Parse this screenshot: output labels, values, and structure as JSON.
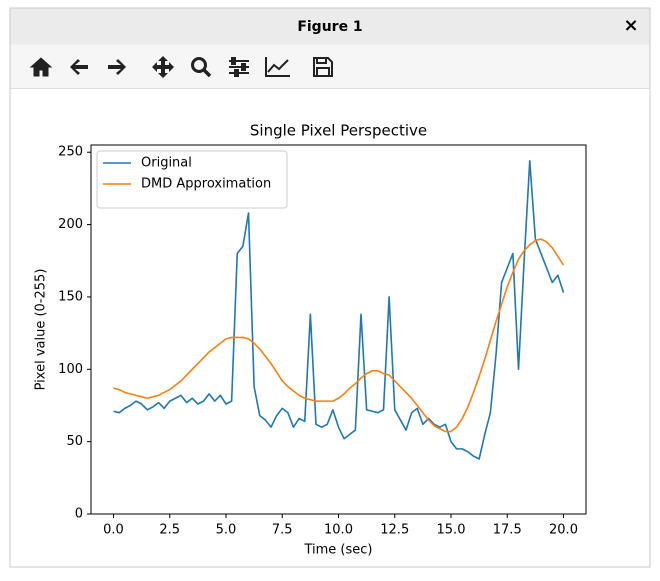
{
  "window": {
    "title": "Figure 1",
    "close": "×"
  },
  "chart_data": {
    "type": "line",
    "title": "Single Pixel Perspective",
    "x_label": "Time (sec)",
    "y_label": "Pixel value (0-255)",
    "xlim": [
      -1,
      21
    ],
    "ylim": [
      0,
      255
    ],
    "xticks": [
      {
        "value": 0,
        "label": "0.0"
      },
      {
        "value": 2.5,
        "label": "2.5"
      },
      {
        "value": 5,
        "label": "5.0"
      },
      {
        "value": 7.5,
        "label": "7.5"
      },
      {
        "value": 10,
        "label": "10.0"
      },
      {
        "value": 12.5,
        "label": "12.5"
      },
      {
        "value": 15,
        "label": "15.0"
      },
      {
        "value": 17.5,
        "label": "17.5"
      },
      {
        "value": 20,
        "label": "20.0"
      }
    ],
    "yticks": [
      0,
      50,
      100,
      150,
      200,
      250
    ],
    "grid": false,
    "legend": "upper left",
    "x": [
      0,
      0.25,
      0.5,
      0.75,
      1,
      1.25,
      1.5,
      1.75,
      2,
      2.25,
      2.5,
      2.75,
      3,
      3.25,
      3.5,
      3.75,
      4,
      4.25,
      4.5,
      4.75,
      5,
      5.25,
      5.5,
      5.75,
      6,
      6.25,
      6.5,
      6.75,
      7,
      7.25,
      7.5,
      7.75,
      8,
      8.25,
      8.5,
      8.75,
      9,
      9.25,
      9.5,
      9.75,
      10,
      10.25,
      10.5,
      10.75,
      11,
      11.25,
      11.5,
      11.75,
      12,
      12.25,
      12.5,
      12.75,
      13,
      13.25,
      13.5,
      13.75,
      14,
      14.25,
      14.5,
      14.75,
      15,
      15.25,
      15.5,
      15.75,
      16,
      16.25,
      16.5,
      16.75,
      17,
      17.25,
      17.5,
      17.75,
      18,
      18.25,
      18.5,
      18.75,
      19,
      19.25,
      19.5,
      19.75,
      20
    ],
    "series": [
      {
        "name": "Original",
        "color": "#1f77b4",
        "values": [
          71,
          70,
          73,
          75,
          78,
          76,
          72,
          74,
          77,
          73,
          78,
          80,
          82,
          77,
          80,
          76,
          78,
          83,
          78,
          82,
          76,
          78,
          180,
          185,
          208,
          88,
          68,
          65,
          60,
          68,
          73,
          70,
          60,
          66,
          64,
          138,
          62,
          60,
          62,
          72,
          60,
          52,
          55,
          58,
          138,
          72,
          71,
          70,
          72,
          150,
          72,
          65,
          58,
          70,
          73,
          62,
          66,
          62,
          60,
          62,
          50,
          45,
          45,
          43,
          40,
          38,
          55,
          70,
          110,
          160,
          170,
          180,
          100,
          175,
          244,
          190,
          180,
          170,
          160,
          165,
          153
        ]
      },
      {
        "name": "DMD Approximation",
        "color": "#ff7f0e",
        "values": [
          87,
          86,
          84,
          83,
          82,
          81,
          80,
          81,
          82,
          84,
          86,
          89,
          92,
          96,
          100,
          104,
          108,
          112,
          115,
          118,
          121,
          122,
          122,
          122,
          121,
          118,
          114,
          109,
          104,
          98,
          92,
          88,
          85,
          82,
          80,
          79,
          78,
          78,
          78,
          78,
          80,
          83,
          87,
          90,
          94,
          97,
          99,
          99,
          97,
          96,
          92,
          88,
          84,
          80,
          75,
          70,
          65,
          61,
          59,
          57,
          57,
          60,
          66,
          74,
          84,
          95,
          107,
          120,
          133,
          145,
          157,
          167,
          176,
          182,
          186,
          189,
          190,
          188,
          184,
          178,
          172
        ]
      }
    ]
  }
}
